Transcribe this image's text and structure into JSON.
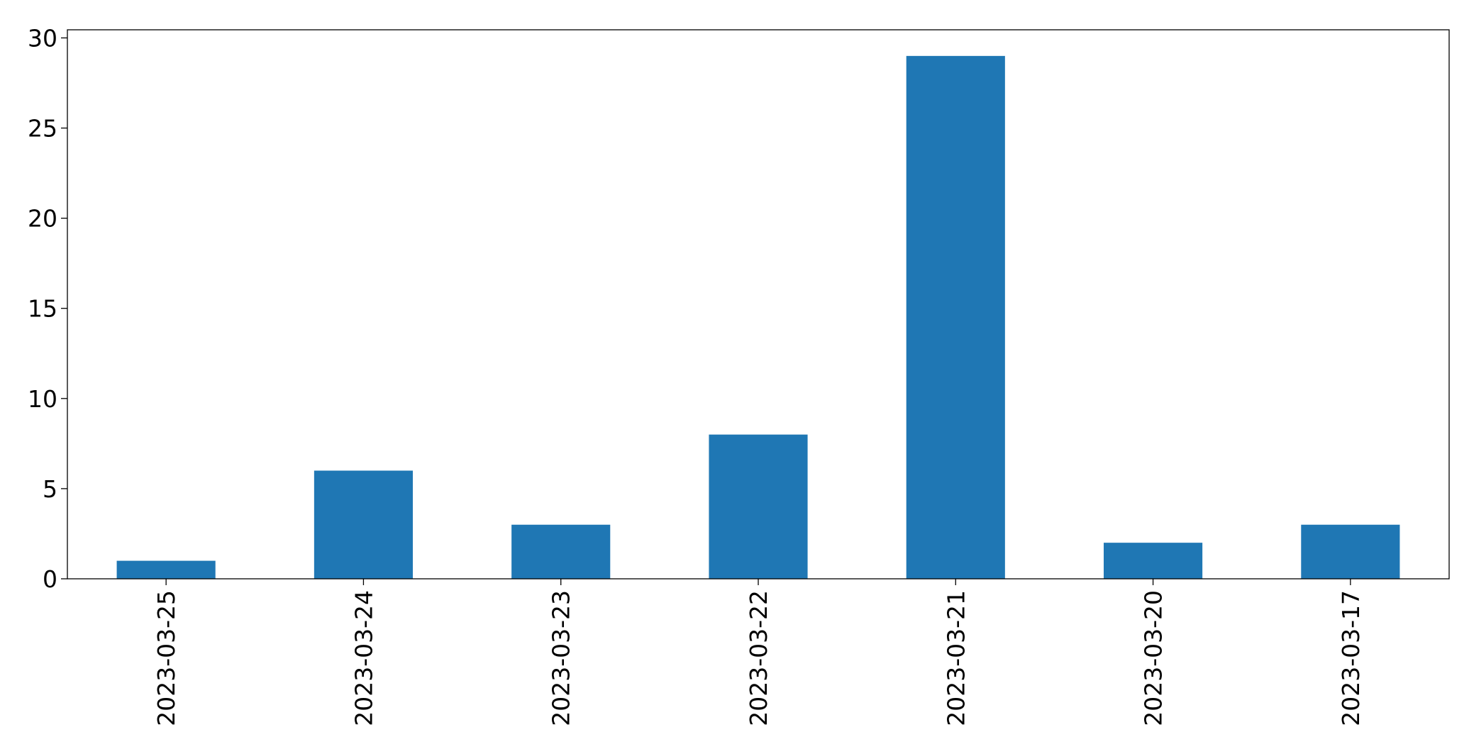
{
  "chart_data": {
    "type": "bar",
    "title": "",
    "xlabel": "",
    "ylabel": "",
    "categories": [
      "2023-03-25",
      "2023-03-24",
      "2023-03-23",
      "2023-03-22",
      "2023-03-21",
      "2023-03-20",
      "2023-03-17"
    ],
    "values": [
      1,
      6,
      3,
      8,
      29,
      2,
      3
    ],
    "ylim": [
      0,
      30.45
    ],
    "yticks": [
      0,
      5,
      10,
      15,
      20,
      25,
      30
    ],
    "ytick_labels": [
      "0",
      "5",
      "10",
      "15",
      "20",
      "25",
      "30"
    ],
    "grid": false,
    "legend": "none",
    "x_tick_rotation": "vertical"
  },
  "colors": {
    "bar": "#1f77b4",
    "axes": "#000000",
    "background": "#ffffff"
  }
}
